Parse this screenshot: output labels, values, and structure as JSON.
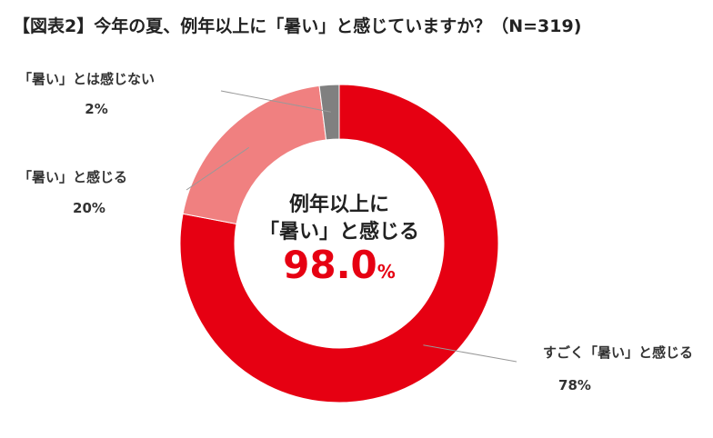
{
  "title": "【図表2】今年の夏、例年以上に「暑い」と感じていますか？（N=319)",
  "colors": {
    "series": [
      "#e60012",
      "#f08080",
      "#808080"
    ],
    "highlight": "#e60012",
    "text": "#333333"
  },
  "center_label": {
    "line1": "例年以上に",
    "line2": "「暑い」と感じる",
    "value": "98.0",
    "unit": "%"
  },
  "chart_data": {
    "type": "pie",
    "style": "donut",
    "title": "【図表2】今年の夏、例年以上に「暑い」と感じていますか？（N=319)",
    "categories": [
      "すごく「暑い」と感じる",
      "「暑い」と感じる",
      "「暑い」とは感じない"
    ],
    "values": [
      78,
      20,
      2
    ],
    "value_labels": [
      "78%",
      "20%",
      "2%"
    ],
    "legend": "none"
  }
}
